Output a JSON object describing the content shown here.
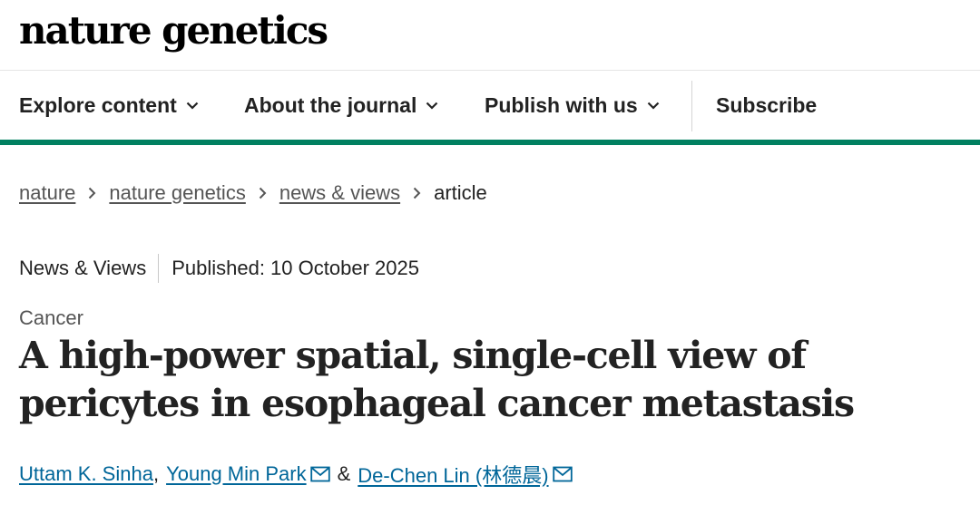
{
  "header": {
    "logo_text": "nature genetics"
  },
  "nav": {
    "items": [
      {
        "label": "Explore content",
        "icon": "chevron-down-icon"
      },
      {
        "label": "About the journal",
        "icon": "chevron-down-icon"
      },
      {
        "label": "Publish with us",
        "icon": "chevron-down-icon"
      }
    ],
    "subscribe_label": "Subscribe",
    "accent_color": "#008060"
  },
  "breadcrumb": {
    "items": [
      "nature",
      "nature genetics",
      "news & views"
    ],
    "current": "article"
  },
  "article": {
    "type": "News & Views",
    "published": "Published: 10 October 2025",
    "subject": "Cancer",
    "title": "A high-power spatial, single-cell view of pericytes in esophageal cancer metastasis",
    "authors": [
      {
        "name": "Uttam K. Sinha",
        "email_icon": false
      },
      {
        "name": "Young Min Park",
        "email_icon": true
      },
      {
        "name": "De-Chen Lin (林德晨)",
        "email_icon": true
      }
    ],
    "author_separator_1": ",",
    "author_separator_2": "&",
    "link_color": "#006699"
  }
}
